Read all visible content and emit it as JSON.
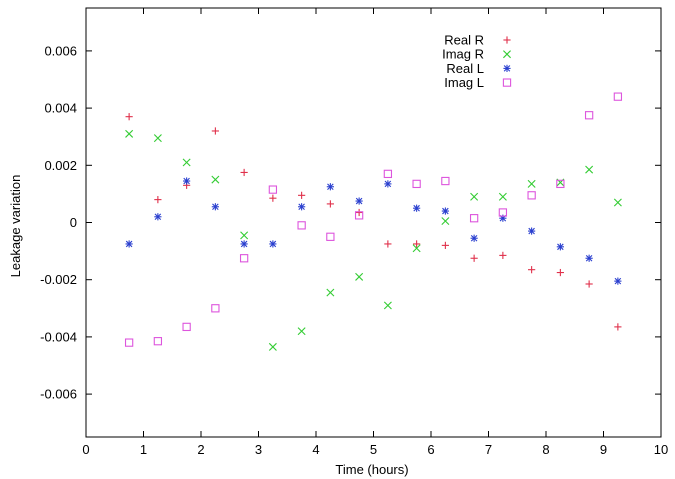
{
  "chart_data": {
    "type": "scatter",
    "title": "",
    "xlabel": "Time (hours)",
    "ylabel": "Leakage variation",
    "xlim": [
      0,
      10
    ],
    "ylim": [
      -0.0075,
      0.0075
    ],
    "x_ticks": [
      0,
      1,
      2,
      3,
      4,
      5,
      6,
      7,
      8,
      9,
      10
    ],
    "x_tick_labels": [
      "0",
      "1",
      "2",
      "3",
      "4",
      "5",
      "6",
      "7",
      "8",
      "9",
      "10"
    ],
    "y_ticks": [
      -0.006,
      -0.004,
      -0.002,
      0,
      0.002,
      0.004,
      0.006
    ],
    "y_tick_labels": [
      "-0.006",
      "-0.004",
      "-0.002",
      "0",
      "0.002",
      "0.004",
      "0.006"
    ],
    "grid": false,
    "legend_position": "top-right",
    "series": [
      {
        "name": "Real R",
        "marker": "plus",
        "color": "#e0304a",
        "x": [
          0.75,
          1.25,
          1.75,
          2.25,
          2.75,
          3.25,
          3.75,
          4.25,
          4.75,
          5.25,
          5.75,
          6.25,
          6.75,
          7.25,
          7.75,
          8.25,
          8.75,
          9.25
        ],
        "y": [
          0.0037,
          0.0008,
          0.0013,
          0.0032,
          0.00175,
          0.00085,
          0.00095,
          0.00065,
          0.00035,
          -0.00075,
          -0.00075,
          -0.0008,
          -0.00125,
          -0.00115,
          -0.00165,
          -0.00175,
          -0.00215,
          -0.00365
        ]
      },
      {
        "name": "Imag R",
        "marker": "x",
        "color": "#33cc33",
        "x": [
          0.75,
          1.25,
          1.75,
          2.25,
          2.75,
          3.25,
          3.75,
          4.25,
          4.75,
          5.25,
          5.75,
          6.25,
          6.75,
          7.25,
          7.75,
          8.25,
          8.75,
          9.25
        ],
        "y": [
          0.0031,
          0.00295,
          0.0021,
          0.0015,
          -0.00045,
          -0.00435,
          -0.0038,
          -0.00245,
          -0.0019,
          -0.0029,
          -0.0009,
          5e-05,
          0.0009,
          0.0009,
          0.00135,
          0.0014,
          0.00185,
          0.0007
        ]
      },
      {
        "name": "Real L",
        "marker": "star",
        "color": "#2a3fcf",
        "x": [
          0.75,
          1.25,
          1.75,
          2.25,
          2.75,
          3.25,
          3.75,
          4.25,
          4.75,
          5.25,
          5.75,
          6.25,
          6.75,
          7.25,
          7.75,
          8.25,
          8.75,
          9.25
        ],
        "y": [
          -0.00075,
          0.0002,
          0.00145,
          0.00055,
          -0.00075,
          -0.00075,
          0.00055,
          0.00125,
          0.00075,
          0.00135,
          0.0005,
          0.0004,
          -0.00055,
          0.00015,
          -0.0003,
          -0.00085,
          -0.00125,
          -0.00205
        ]
      },
      {
        "name": "Imag L",
        "marker": "square",
        "color": "#dd55dd",
        "x": [
          0.75,
          1.25,
          1.75,
          2.25,
          2.75,
          3.25,
          3.75,
          4.25,
          4.75,
          5.25,
          5.75,
          6.25,
          6.75,
          7.25,
          7.75,
          8.25,
          8.75,
          9.25
        ],
        "y": [
          -0.0042,
          -0.00415,
          -0.00365,
          -0.003,
          -0.00125,
          0.00115,
          -0.0001,
          -0.0005,
          0.00025,
          0.0017,
          0.00135,
          0.00145,
          0.00015,
          0.00035,
          0.00095,
          0.00135,
          0.00375,
          0.0044
        ]
      }
    ]
  }
}
